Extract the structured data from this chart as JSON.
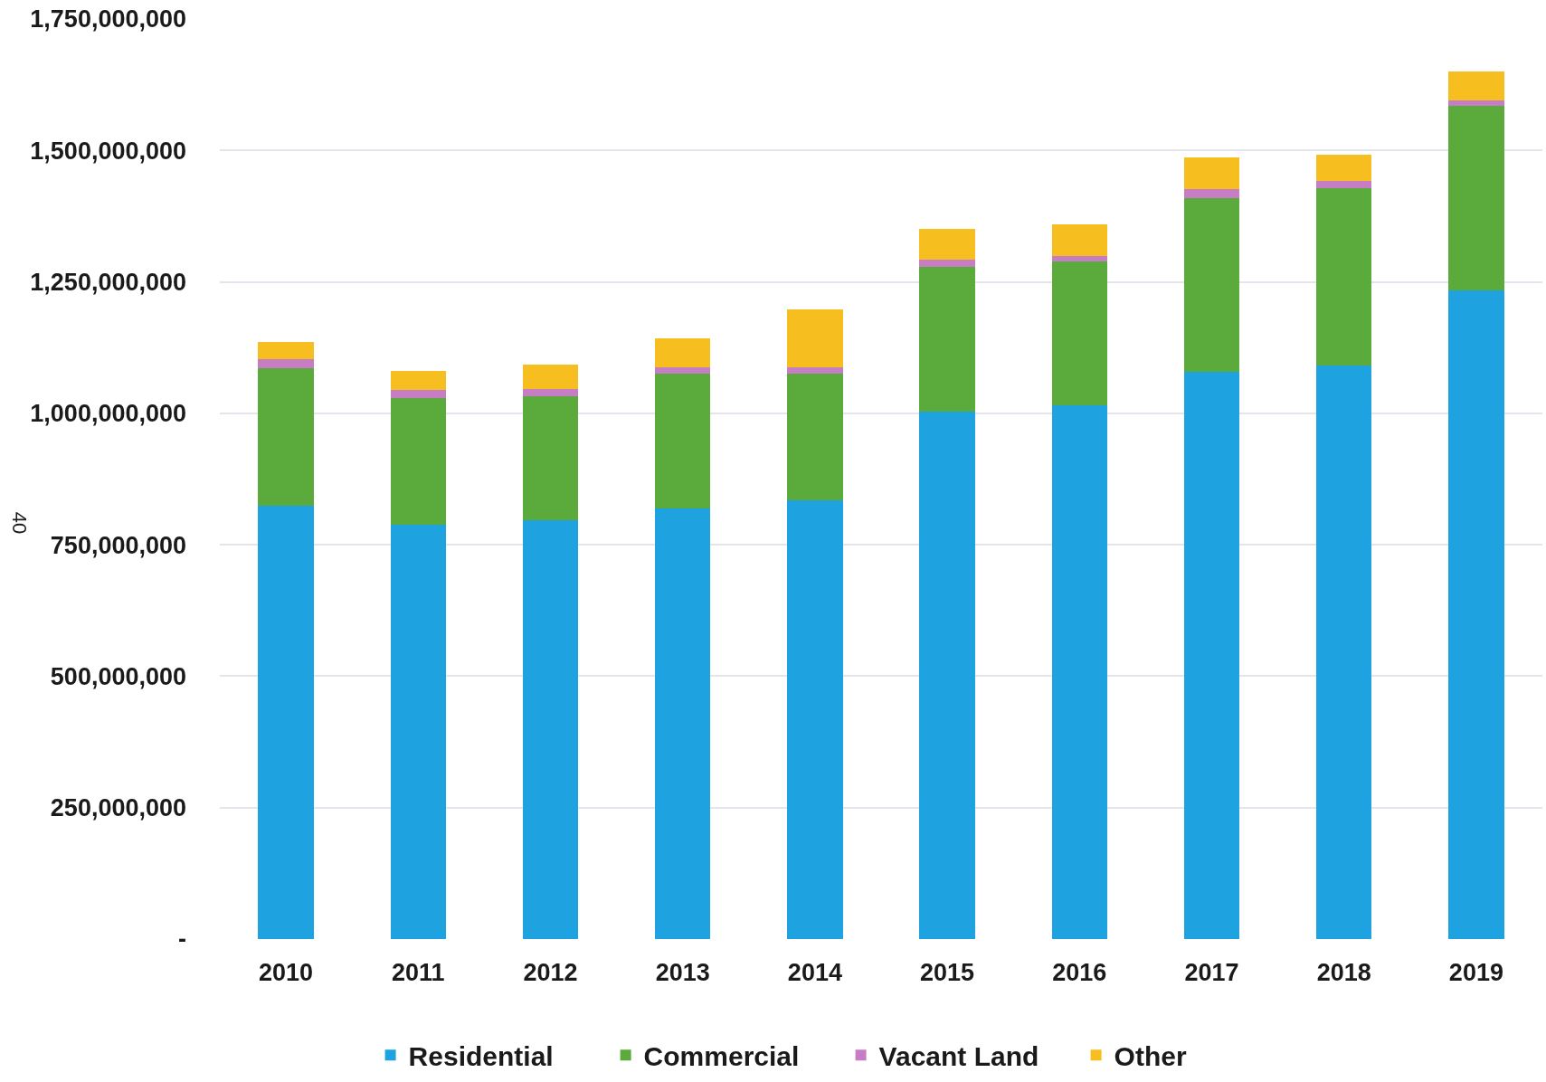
{
  "chart_data": {
    "type": "bar",
    "stacked": true,
    "categories": [
      "2010",
      "2011",
      "2012",
      "2013",
      "2014",
      "2015",
      "2016",
      "2017",
      "2018",
      "2019"
    ],
    "series": [
      {
        "name": "Residential",
        "color": "#1fa2e0",
        "values": [
          824000000,
          788000000,
          796000000,
          819000000,
          835000000,
          1004000000,
          1015000000,
          1079000000,
          1091000000,
          1234000000
        ]
      },
      {
        "name": "Commercial",
        "color": "#5aab3c",
        "values": [
          261000000,
          241000000,
          237000000,
          256000000,
          241000000,
          274000000,
          273000000,
          331000000,
          337000000,
          351000000
        ]
      },
      {
        "name": "Vacant Land",
        "color": "#c67dc4",
        "values": [
          18000000,
          16000000,
          14000000,
          13000000,
          11000000,
          14000000,
          12000000,
          17000000,
          14000000,
          11000000
        ]
      },
      {
        "name": "Other",
        "color": "#f6be1f",
        "values": [
          32000000,
          35000000,
          46000000,
          55000000,
          110000000,
          58000000,
          60000000,
          60000000,
          50000000,
          55000000
        ]
      }
    ],
    "ylim": [
      0,
      1750000000
    ],
    "yticks": [
      {
        "value": 0,
        "label": "-"
      },
      {
        "value": 250000000,
        "label": "250,000,000"
      },
      {
        "value": 500000000,
        "label": "500,000,000"
      },
      {
        "value": 750000000,
        "label": "750,000,000"
      },
      {
        "value": 1000000000,
        "label": "1,000,000,000"
      },
      {
        "value": 1250000000,
        "label": "1,250,000,000"
      },
      {
        "value": 1500000000,
        "label": "1,500,000,000"
      },
      {
        "value": 1750000000,
        "label": "1,750,000,000"
      }
    ],
    "grid": "y",
    "legend": "bottom",
    "annotations": [
      "40"
    ]
  }
}
